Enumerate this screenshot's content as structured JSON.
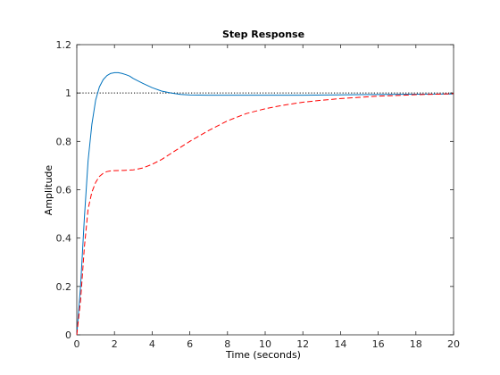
{
  "chart_data": {
    "type": "line",
    "title": "Step Response",
    "xlabel": "Time (seconds)",
    "ylabel": "Amplitude",
    "xlim": [
      0,
      20
    ],
    "ylim": [
      0,
      1.2
    ],
    "xticks": [
      0,
      2,
      4,
      6,
      8,
      10,
      12,
      14,
      16,
      18,
      20
    ],
    "yticks": [
      0,
      0.2,
      0.4,
      0.6,
      0.8,
      1,
      1.2
    ],
    "xtick_labels": [
      "0",
      "2",
      "4",
      "6",
      "8",
      "10",
      "12",
      "14",
      "16",
      "18",
      "20"
    ],
    "ytick_labels": [
      "0",
      "0.2",
      "0.4",
      "0.6",
      "0.8",
      "1",
      "1.2"
    ],
    "grid": false,
    "reference_line": {
      "y": 1,
      "style": "dotted",
      "color": "#000000"
    },
    "series": [
      {
        "style": "solid",
        "color": "#0072bd",
        "x": [
          0,
          0.2,
          0.4,
          0.6,
          0.8,
          1.0,
          1.2,
          1.4,
          1.6,
          1.8,
          2.0,
          2.2,
          2.4,
          2.6,
          2.8,
          3.0,
          3.5,
          4.0,
          4.5,
          5.0,
          5.5,
          6.0,
          7.0,
          8.0,
          10.0,
          12.0,
          15.0,
          18.0,
          20.0
        ],
        "y": [
          0,
          0.2,
          0.48,
          0.72,
          0.87,
          0.97,
          1.025,
          1.055,
          1.072,
          1.081,
          1.084,
          1.084,
          1.081,
          1.076,
          1.07,
          1.06,
          1.04,
          1.022,
          1.008,
          1.0,
          0.994,
          0.992,
          0.991,
          0.991,
          0.991,
          0.991,
          0.993,
          0.995,
          0.996
        ]
      },
      {
        "style": "dashed",
        "color": "#ff0000",
        "x": [
          0,
          0.2,
          0.4,
          0.6,
          0.8,
          1.0,
          1.2,
          1.4,
          1.6,
          1.8,
          2.0,
          2.5,
          3.0,
          3.5,
          4.0,
          4.5,
          5.0,
          5.5,
          6.0,
          7.0,
          8.0,
          9.0,
          10.0,
          11.0,
          12.0,
          13.0,
          14.0,
          15.0,
          16.0,
          17.0,
          18.0,
          19.0,
          20.0
        ],
        "y": [
          0,
          0.14,
          0.36,
          0.52,
          0.59,
          0.63,
          0.655,
          0.668,
          0.675,
          0.678,
          0.679,
          0.68,
          0.682,
          0.69,
          0.705,
          0.725,
          0.75,
          0.775,
          0.8,
          0.845,
          0.885,
          0.915,
          0.935,
          0.95,
          0.962,
          0.97,
          0.977,
          0.982,
          0.987,
          0.99,
          0.993,
          0.995,
          0.997
        ]
      }
    ]
  }
}
